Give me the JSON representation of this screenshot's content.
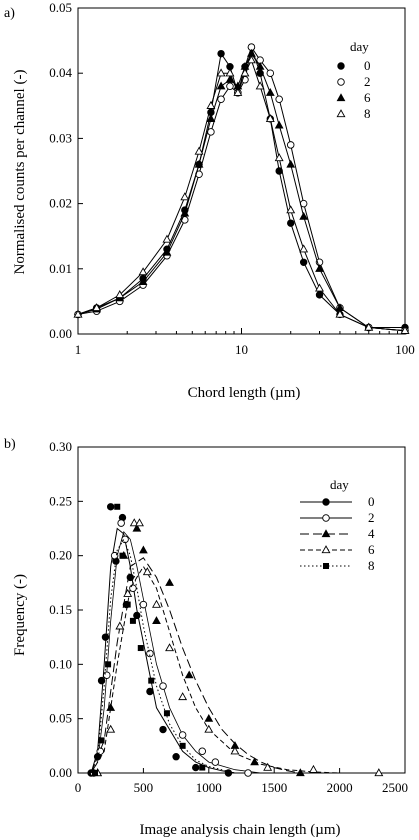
{
  "chart_data": [
    {
      "panel_label": "a)",
      "type": "line",
      "xscale": "log",
      "xlim": [
        1,
        100
      ],
      "ylim": [
        0,
        0.05
      ],
      "xticks": [
        "1",
        "10",
        "100"
      ],
      "yticks": [
        "0.00",
        "0.01",
        "0.02",
        "0.03",
        "0.04",
        "0.05"
      ],
      "xlabel": "Chord length (µm)",
      "ylabel": "Normalised counts per channel (-)",
      "legend_title": "day",
      "legend_position": "top-right",
      "series": [
        {
          "name": "0",
          "marker": "filled-circle",
          "x": [
            1,
            1.3,
            1.8,
            2.5,
            3.5,
            4.5,
            5.5,
            6.5,
            7.5,
            8.5,
            9.5,
            10.5,
            11.5,
            13,
            15,
            17,
            20,
            24,
            30,
            40,
            60,
            100
          ],
          "y": [
            0.003,
            0.004,
            0.0055,
            0.0085,
            0.013,
            0.019,
            0.026,
            0.034,
            0.043,
            0.041,
            0.037,
            0.041,
            0.044,
            0.04,
            0.033,
            0.025,
            0.017,
            0.011,
            0.006,
            0.003,
            0.001,
            0.001
          ]
        },
        {
          "name": "2",
          "marker": "open-circle",
          "x": [
            1,
            1.3,
            1.8,
            2.5,
            3.5,
            4.5,
            5.5,
            6.5,
            7.5,
            8.5,
            9.5,
            10.5,
            11.5,
            13,
            15,
            17,
            20,
            24,
            30,
            40,
            60,
            100
          ],
          "y": [
            0.003,
            0.0035,
            0.005,
            0.0075,
            0.012,
            0.0175,
            0.0245,
            0.031,
            0.036,
            0.038,
            0.037,
            0.039,
            0.044,
            0.042,
            0.04,
            0.036,
            0.029,
            0.02,
            0.011,
            0.004,
            0.001,
            0.0005
          ]
        },
        {
          "name": "6",
          "marker": "filled-triangle",
          "x": [
            1,
            1.3,
            1.8,
            2.5,
            3.5,
            4.5,
            5.5,
            6.5,
            7.5,
            8.5,
            9.5,
            10.5,
            11.5,
            13,
            15,
            17,
            20,
            24,
            30,
            40,
            60,
            100
          ],
          "y": [
            0.003,
            0.0038,
            0.0055,
            0.008,
            0.0125,
            0.0185,
            0.026,
            0.033,
            0.038,
            0.039,
            0.038,
            0.041,
            0.043,
            0.041,
            0.037,
            0.032,
            0.026,
            0.018,
            0.01,
            0.004,
            0.001,
            0.0005
          ]
        },
        {
          "name": "8",
          "marker": "open-triangle",
          "x": [
            1,
            1.3,
            1.8,
            2.5,
            3.5,
            4.5,
            5.5,
            6.5,
            7.5,
            8.5,
            9.5,
            10.5,
            11.5,
            13,
            15,
            17,
            20,
            24,
            30,
            40,
            60,
            100
          ],
          "y": [
            0.003,
            0.004,
            0.006,
            0.0095,
            0.0145,
            0.021,
            0.028,
            0.035,
            0.04,
            0.04,
            0.037,
            0.04,
            0.042,
            0.038,
            0.033,
            0.027,
            0.019,
            0.013,
            0.007,
            0.003,
            0.001,
            0.0005
          ]
        }
      ]
    },
    {
      "panel_label": "b)",
      "type": "line",
      "xlim": [
        0,
        2500
      ],
      "ylim": [
        0,
        0.3
      ],
      "xticks": [
        "0",
        "500",
        "1000",
        "1500",
        "2000",
        "2500"
      ],
      "yticks": [
        "0.00",
        "0.05",
        "0.10",
        "0.15",
        "0.20",
        "0.25",
        "0.30"
      ],
      "xlabel": "Image analysis chain length (µm)",
      "ylabel": "Frequency (-)",
      "legend_title": "day",
      "legend_position": "top-right",
      "series": [
        {
          "name": "0",
          "marker": "filled-circle",
          "line": "solid",
          "color": "#000000",
          "x": [
            100,
            150,
            200,
            250,
            300,
            350,
            400,
            450,
            500,
            600,
            700,
            800,
            900,
            1000,
            1100,
            1200
          ],
          "y": [
            0.0,
            0.02,
            0.1,
            0.19,
            0.225,
            0.22,
            0.19,
            0.15,
            0.12,
            0.06,
            0.04,
            0.02,
            0.01,
            0.005,
            0.002,
            0.0
          ],
          "points_x": [
            100,
            150,
            180,
            210,
            250,
            290,
            340,
            370,
            400,
            450,
            550,
            650,
            750,
            900,
            1150
          ],
          "points_y": [
            0.0,
            0.015,
            0.085,
            0.125,
            0.245,
            0.195,
            0.235,
            0.155,
            0.18,
            0.145,
            0.075,
            0.04,
            0.015,
            0.005,
            0.0
          ]
        },
        {
          "name": "2",
          "marker": "open-circle",
          "line": "solid-thin",
          "color": "#000000",
          "x": [
            100,
            150,
            200,
            250,
            300,
            350,
            400,
            450,
            500,
            600,
            700,
            800,
            900,
            1000,
            1200,
            1400
          ],
          "y": [
            0.0,
            0.01,
            0.06,
            0.14,
            0.2,
            0.222,
            0.215,
            0.19,
            0.16,
            0.1,
            0.06,
            0.035,
            0.02,
            0.01,
            0.003,
            0.0
          ],
          "points_x": [
            120,
            170,
            220,
            280,
            330,
            360,
            420,
            500,
            550,
            650,
            800,
            950,
            1050,
            1300
          ],
          "points_y": [
            0.0,
            0.02,
            0.09,
            0.2,
            0.23,
            0.215,
            0.17,
            0.155,
            0.11,
            0.08,
            0.035,
            0.02,
            0.01,
            0.0
          ]
        },
        {
          "name": "4",
          "marker": "filled-triangle",
          "line": "long-dash",
          "color": "#000000",
          "x": [
            100,
            200,
            300,
            400,
            500,
            600,
            700,
            800,
            900,
            1000,
            1100,
            1200,
            1300,
            1400,
            1500,
            1600,
            1700
          ],
          "y": [
            0.0,
            0.03,
            0.12,
            0.19,
            0.198,
            0.18,
            0.15,
            0.115,
            0.085,
            0.06,
            0.04,
            0.027,
            0.017,
            0.01,
            0.005,
            0.002,
            0.0
          ],
          "points_x": [
            150,
            250,
            350,
            450,
            500,
            600,
            700,
            850,
            1000,
            1200,
            1350,
            1700
          ],
          "points_y": [
            0.0,
            0.06,
            0.2,
            0.225,
            0.205,
            0.14,
            0.175,
            0.09,
            0.05,
            0.025,
            0.01,
            0.0
          ]
        },
        {
          "name": "6",
          "marker": "open-triangle",
          "line": "dash",
          "color": "#000000",
          "x": [
            100,
            200,
            300,
            400,
            500,
            600,
            700,
            800,
            900,
            1000,
            1200,
            1400,
            1600,
            1800,
            2000
          ],
          "y": [
            0.0,
            0.02,
            0.1,
            0.17,
            0.19,
            0.17,
            0.13,
            0.09,
            0.06,
            0.04,
            0.018,
            0.008,
            0.003,
            0.001,
            0.0
          ],
          "points_x": [
            150,
            250,
            320,
            380,
            430,
            470,
            530,
            600,
            700,
            800,
            1000,
            1200,
            1450,
            1800,
            2300
          ],
          "points_y": [
            0.0,
            0.04,
            0.135,
            0.165,
            0.23,
            0.23,
            0.185,
            0.155,
            0.115,
            0.07,
            0.04,
            0.02,
            0.005,
            0.003,
            0.0
          ]
        },
        {
          "name": "8",
          "marker": "filled-square",
          "line": "dotted",
          "color": "#000000",
          "x": [
            100,
            150,
            200,
            250,
            300,
            350,
            400,
            450,
            500,
            600,
            700,
            800,
            900,
            1000,
            1200
          ],
          "y": [
            0.0,
            0.015,
            0.08,
            0.16,
            0.205,
            0.215,
            0.2,
            0.17,
            0.135,
            0.08,
            0.045,
            0.025,
            0.012,
            0.006,
            0.0
          ],
          "points_x": [
            130,
            180,
            230,
            300,
            340,
            380,
            420,
            480,
            560,
            680,
            800,
            950
          ],
          "points_y": [
            0.0,
            0.03,
            0.1,
            0.245,
            0.2,
            0.155,
            0.14,
            0.115,
            0.085,
            0.055,
            0.025,
            0.005
          ]
        }
      ]
    }
  ]
}
